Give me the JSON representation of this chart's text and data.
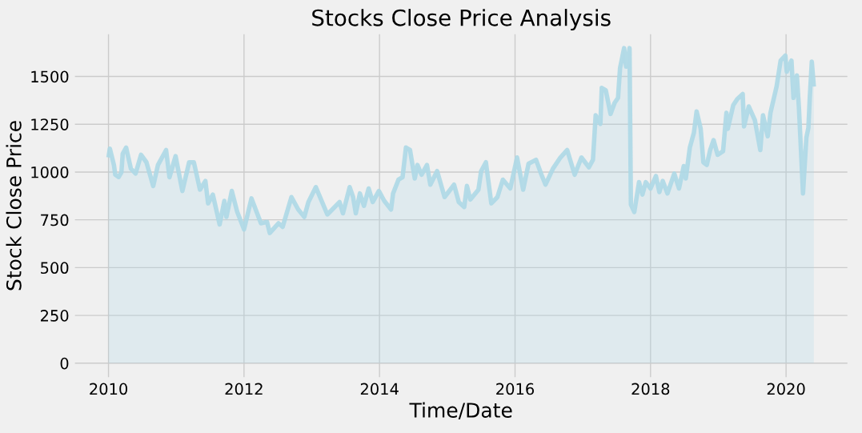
{
  "chart_data": {
    "type": "area",
    "title": "Stocks Close Price Analysis",
    "xlabel": "Time/Date",
    "ylabel": "Stock Close Price",
    "x": [
      2010.0,
      2010.02,
      2010.08,
      2010.1,
      2010.15,
      2010.19,
      2010.21,
      2010.26,
      2010.33,
      2010.4,
      2010.48,
      2010.56,
      2010.66,
      2010.73,
      2010.85,
      2010.9,
      2010.99,
      2011.09,
      2011.19,
      2011.26,
      2011.35,
      2011.43,
      2011.47,
      2011.54,
      2011.64,
      2011.71,
      2011.74,
      2011.82,
      2011.9,
      2012.0,
      2012.11,
      2012.25,
      2012.34,
      2012.38,
      2012.51,
      2012.57,
      2012.7,
      2012.8,
      2012.89,
      2012.95,
      2013.06,
      2013.23,
      2013.41,
      2013.46,
      2013.56,
      2013.61,
      2013.65,
      2013.71,
      2013.77,
      2013.84,
      2013.9,
      2013.99,
      2014.07,
      2014.17,
      2014.2,
      2014.28,
      2014.34,
      2014.39,
      2014.45,
      2014.52,
      2014.56,
      2014.62,
      2014.7,
      2014.75,
      2014.85,
      2014.96,
      2015.1,
      2015.17,
      2015.25,
      2015.29,
      2015.34,
      2015.46,
      2015.5,
      2015.57,
      2015.65,
      2015.74,
      2015.82,
      2015.93,
      2016.03,
      2016.12,
      2016.2,
      2016.31,
      2016.39,
      2016.45,
      2016.56,
      2016.67,
      2016.77,
      2016.88,
      2016.98,
      2017.09,
      2017.15,
      2017.19,
      2017.26,
      2017.28,
      2017.34,
      2017.41,
      2017.47,
      2017.52,
      2017.55,
      2017.61,
      2017.64,
      2017.66,
      2017.69,
      2017.71,
      2017.76,
      2017.83,
      2017.88,
      2017.93,
      2018.0,
      2018.08,
      2018.13,
      2018.18,
      2018.25,
      2018.35,
      2018.42,
      2018.49,
      2018.52,
      2018.58,
      2018.64,
      2018.68,
      2018.74,
      2018.78,
      2018.83,
      2018.88,
      2018.93,
      2018.99,
      2019.07,
      2019.12,
      2019.14,
      2019.22,
      2019.28,
      2019.36,
      2019.38,
      2019.45,
      2019.54,
      2019.62,
      2019.66,
      2019.73,
      2019.77,
      2019.86,
      2019.92,
      2019.99,
      2020.01,
      2020.08,
      2020.11,
      2020.16,
      2020.19,
      2020.22,
      2020.25,
      2020.3,
      2020.33,
      2020.35,
      2020.38,
      2020.41
    ],
    "series": [
      {
        "color": "#add8e6",
        "values": [
          1076,
          1122,
          1037,
          986,
          974,
          998,
          1096,
          1128,
          1018,
          992,
          1090,
          1051,
          927,
          1037,
          1115,
          973,
          1083,
          901,
          1051,
          1051,
          908,
          953,
          836,
          882,
          726,
          849,
          765,
          901,
          791,
          700,
          862,
          732,
          739,
          681,
          732,
          713,
          869,
          804,
          765,
          843,
          921,
          778,
          843,
          784,
          921,
          869,
          784,
          888,
          823,
          914,
          843,
          901,
          849,
          804,
          888,
          960,
          973,
          1128,
          1115,
          966,
          1037,
          986,
          1037,
          934,
          1005,
          869,
          934,
          843,
          817,
          927,
          856,
          908,
          1005,
          1051,
          836,
          869,
          960,
          914,
          1076,
          908,
          1044,
          1064,
          986,
          934,
          1018,
          1076,
          1115,
          986,
          1076,
          1025,
          1064,
          1297,
          1252,
          1440,
          1427,
          1304,
          1362,
          1388,
          1544,
          1648,
          1551,
          1564,
          1648,
          830,
          791,
          947,
          882,
          947,
          914,
          979,
          895,
          953,
          888,
          992,
          914,
          1031,
          966,
          1128,
          1206,
          1317,
          1226,
          1051,
          1037,
          1115,
          1167,
          1090,
          1109,
          1310,
          1226,
          1349,
          1382,
          1408,
          1239,
          1343,
          1271,
          1115,
          1297,
          1187,
          1310,
          1447,
          1583,
          1609,
          1525,
          1583,
          1388,
          1505,
          1336,
          1115,
          888,
          1180,
          1232,
          1388,
          1577,
          1447
        ]
      }
    ],
    "xlim": [
      2009.48,
      2020.93
    ],
    "ylim": [
      -82,
      1730
    ],
    "xticks": [
      2010,
      2012,
      2014,
      2016,
      2018,
      2020
    ],
    "yticks": [
      0,
      250,
      500,
      750,
      1000,
      1250,
      1500
    ],
    "grid": true,
    "legend": false
  }
}
